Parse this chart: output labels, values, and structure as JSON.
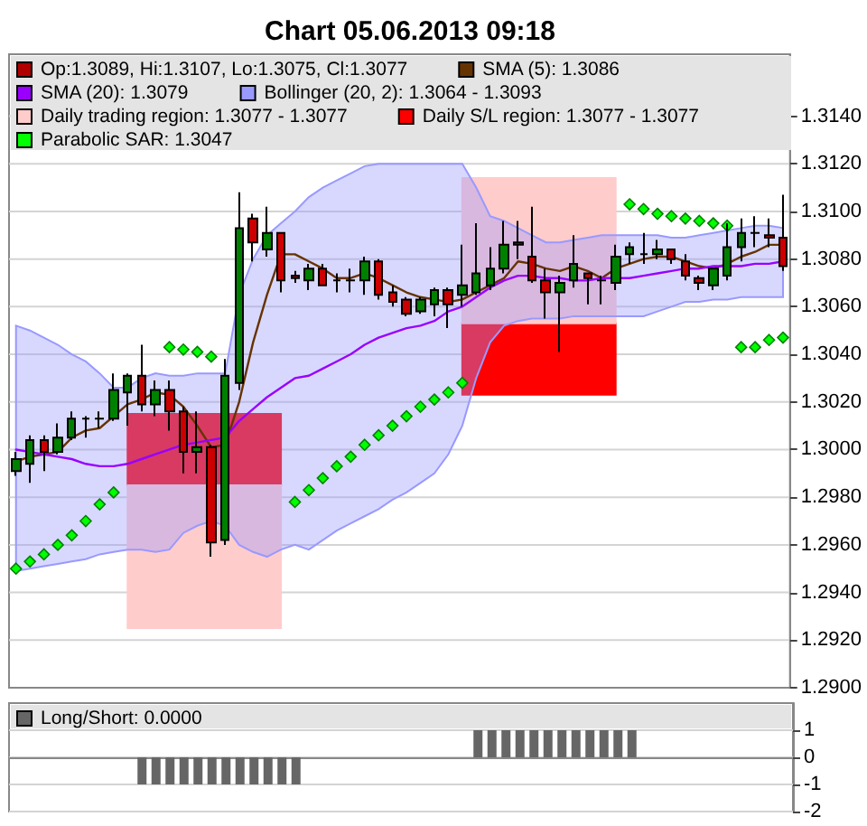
{
  "chart_data": [
    {
      "type": "candlestick",
      "title": "Chart 05.06.2013 09:18",
      "categories": [
        null,
        null,
        null,
        null,
        null,
        null,
        null,
        null,
        null,
        null,
        null,
        null,
        null,
        null,
        null,
        null,
        null,
        null,
        null,
        null,
        null,
        null,
        null,
        null,
        null,
        null,
        null,
        null,
        null,
        null,
        null,
        null,
        null,
        null,
        null,
        null,
        null,
        null,
        null,
        null,
        null,
        null,
        null,
        null,
        null,
        null,
        null,
        null,
        null,
        null,
        null,
        null,
        null,
        null,
        null,
        null
      ],
      "series": [
        {
          "type": "candlestick",
          "name": "Op:1.3089, Hi:1.3107, Lo:1.3075, Cl:1.3077",
          "color": "#b00000",
          "colors": [
            "#008000",
            "#008000",
            "#cc0000",
            "#008000",
            "#008000",
            "#000000",
            "#000000",
            "#008000",
            "#008000",
            "#cc0000",
            "#008000",
            "#cc0000",
            "#cc0000",
            "#008000",
            "#cc0000",
            "#008000",
            "#008000",
            "#cc0000",
            "#008000",
            "#cc0000",
            "#cc0000",
            "#008000",
            "#cc0000",
            "#000000",
            "#000000",
            "#008000",
            "#cc0000",
            "#cc0000",
            "#cc0000",
            "#008000",
            "#008000",
            "#cc0000",
            "#008000",
            "#008000",
            "#008000",
            "#008000",
            "#cc0000",
            "#cc0000",
            "#cc0000",
            "#008000",
            "#008000",
            "#cc0000",
            "#000000",
            "#008000",
            "#008000",
            "#000000",
            "#008000",
            "#cc0000",
            "#cc0000",
            "#cc0000",
            "#008000",
            "#008000",
            "#008000",
            "#000000",
            "#cc0000",
            "#cc0000"
          ],
          "ohlc": [
            [
              1.2991,
              1.2999,
              1.2989,
              1.2996
            ],
            [
              1.2994,
              1.3006,
              1.2986,
              1.3004
            ],
            [
              1.3004,
              1.3006,
              1.2991,
              1.2999
            ],
            [
              1.2999,
              1.3011,
              1.2998,
              1.3005
            ],
            [
              1.3005,
              1.3016,
              1.3004,
              1.3013
            ],
            [
              1.3013,
              1.3014,
              1.3005,
              1.3013
            ],
            [
              1.3013,
              1.3016,
              1.3009,
              1.3013
            ],
            [
              1.3013,
              1.3032,
              1.3012,
              1.3025
            ],
            [
              1.3024,
              1.3032,
              1.301,
              1.3031
            ],
            [
              1.3031,
              1.3044,
              1.3016,
              1.3019
            ],
            [
              1.3019,
              1.3029,
              1.3014,
              1.3025
            ],
            [
              1.3025,
              1.3029,
              1.3008,
              1.3016
            ],
            [
              1.3016,
              1.3018,
              1.299,
              1.2999
            ],
            [
              1.2999,
              1.3016,
              1.299,
              1.3001
            ],
            [
              1.3001,
              1.3002,
              1.2955,
              1.2961
            ],
            [
              1.2962,
              1.3038,
              1.296,
              1.3031
            ],
            [
              1.3028,
              1.3108,
              1.3025,
              1.3093
            ],
            [
              1.3097,
              1.3099,
              1.3079,
              1.3087
            ],
            [
              1.3084,
              1.3102,
              1.3081,
              1.3091
            ],
            [
              1.3091,
              1.3091,
              1.3066,
              1.3071
            ],
            [
              1.3073,
              1.3075,
              1.307,
              1.3072
            ],
            [
              1.3071,
              1.3078,
              1.3067,
              1.3076
            ],
            [
              1.3076,
              1.3078,
              1.3069,
              1.3069
            ],
            [
              1.3071,
              1.3074,
              1.3066,
              1.3071
            ],
            [
              1.3071,
              1.3076,
              1.3066,
              1.3071
            ],
            [
              1.3071,
              1.3081,
              1.3065,
              1.3079
            ],
            [
              1.3079,
              1.308,
              1.3063,
              1.3065
            ],
            [
              1.3066,
              1.3069,
              1.306,
              1.3062
            ],
            [
              1.3063,
              1.3064,
              1.3056,
              1.3057
            ],
            [
              1.3058,
              1.3064,
              1.3057,
              1.3063
            ],
            [
              1.3061,
              1.3068,
              1.3056,
              1.3067
            ],
            [
              1.3067,
              1.3068,
              1.3051,
              1.3061
            ],
            [
              1.3065,
              1.3086,
              1.306,
              1.3069
            ],
            [
              1.3066,
              1.3095,
              1.3065,
              1.3074
            ],
            [
              1.3069,
              1.3085,
              1.3067,
              1.3076
            ],
            [
              1.3076,
              1.3096,
              1.3074,
              1.3086
            ],
            [
              1.3087,
              1.3096,
              1.308,
              1.3086
            ],
            [
              1.3081,
              1.3102,
              1.307,
              1.3071
            ],
            [
              1.3071,
              1.3076,
              1.3055,
              1.3066
            ],
            [
              1.3066,
              1.3073,
              1.3041,
              1.307
            ],
            [
              1.3071,
              1.309,
              1.3068,
              1.3078
            ],
            [
              1.3074,
              1.3074,
              1.3061,
              1.3072
            ],
            [
              1.3071,
              1.3073,
              1.3061,
              1.3071
            ],
            [
              1.307,
              1.3086,
              1.3067,
              1.3081
            ],
            [
              1.3082,
              1.3087,
              1.3078,
              1.3085
            ],
            [
              1.3082,
              1.3091,
              1.3078,
              1.3082
            ],
            [
              1.3082,
              1.3088,
              1.308,
              1.3084
            ],
            [
              1.3084,
              1.3084,
              1.3078,
              1.308
            ],
            [
              1.3079,
              1.3082,
              1.3071,
              1.3073
            ],
            [
              1.3072,
              1.3073,
              1.3067,
              1.307
            ],
            [
              1.3069,
              1.3076,
              1.3067,
              1.3076
            ],
            [
              1.3073,
              1.3095,
              1.3071,
              1.3085
            ],
            [
              1.3085,
              1.3097,
              1.3079,
              1.3091
            ],
            [
              1.3091,
              1.3098,
              1.3085,
              1.3091
            ],
            [
              1.309,
              1.3097,
              1.3085,
              1.3089
            ],
            [
              1.3089,
              1.3107,
              1.3075,
              1.3077
            ]
          ]
        },
        {
          "type": "line",
          "name": "SMA (5): 1.3086",
          "color": "#663300",
          "values": [
            1.2995,
            1.2997,
            1.2998,
            1.2999,
            1.3005,
            1.3008,
            1.3009,
            1.3014,
            1.3019,
            1.3021,
            1.3024,
            1.3023,
            1.3018,
            1.301,
            1.3001,
            1.3002,
            1.302,
            1.3045,
            1.3065,
            1.3082,
            1.3082,
            1.3079,
            1.3076,
            1.3072,
            1.3072,
            1.3074,
            1.3072,
            1.3069,
            1.3066,
            1.3064,
            1.3063,
            1.3062,
            1.3063,
            1.3066,
            1.3069,
            1.3072,
            1.3079,
            1.3078,
            1.3076,
            1.3075,
            1.3077,
            1.3075,
            1.3072,
            1.3076,
            1.3078,
            1.308,
            1.3081,
            1.3081,
            1.3079,
            1.3077,
            1.3076,
            1.3078,
            1.3081,
            1.3083,
            1.3086,
            1.3086
          ]
        },
        {
          "type": "line",
          "name": "SMA (20): 1.3079",
          "color": "#9900ff",
          "values": [
            1.3,
            1.2999,
            1.2998,
            1.2997,
            1.2996,
            1.2994,
            1.2993,
            1.2993,
            1.2994,
            1.2996,
            1.2998,
            1.3,
            1.3002,
            1.3003,
            1.3004,
            1.3005,
            1.3012,
            1.3017,
            1.3022,
            1.3026,
            1.303,
            1.3031,
            1.3034,
            1.3037,
            1.304,
            1.3044,
            1.3047,
            1.3049,
            1.3051,
            1.3052,
            1.3054,
            1.3058,
            1.306,
            1.3064,
            1.3068,
            1.3071,
            1.3073,
            1.3073,
            1.3072,
            1.3072,
            1.3071,
            1.3071,
            1.3072,
            1.3072,
            1.3072,
            1.3073,
            1.3074,
            1.3075,
            1.3076,
            1.3076,
            1.3077,
            1.3077,
            1.3077,
            1.3078,
            1.3078,
            1.3079
          ]
        },
        {
          "type": "line",
          "name": "Bollinger (20, 2): 1.3064 - 1.3093",
          "color": "#9999ff",
          "values": [
            null,
            null,
            null,
            null,
            null,
            null,
            null,
            null,
            null,
            null,
            null,
            null,
            null,
            null,
            null,
            null,
            null,
            null,
            null,
            null,
            null,
            null,
            null,
            null,
            null,
            null,
            null,
            null,
            null,
            null,
            null,
            null,
            null,
            null,
            null,
            null,
            null,
            null,
            null,
            null,
            null,
            null,
            null,
            null,
            null,
            null,
            null,
            null,
            null,
            null,
            null,
            null,
            null,
            null,
            null,
            null
          ],
          "upper": [
            1.3052,
            1.305,
            1.3047,
            1.3044,
            1.304,
            1.3037,
            1.3032,
            1.3026,
            1.3026,
            1.303,
            1.3032,
            1.3031,
            1.3031,
            1.3032,
            1.3032,
            1.3032,
            1.3065,
            1.308,
            1.309,
            1.3095,
            1.31,
            1.3106,
            1.311,
            1.3113,
            1.3116,
            1.3119,
            1.312,
            1.312,
            1.312,
            1.312,
            1.312,
            1.312,
            1.312,
            1.311,
            1.3098,
            1.3096,
            1.3093,
            1.309,
            1.3087,
            1.3087,
            1.3088,
            1.3089,
            1.309,
            1.309,
            1.309,
            1.309,
            1.309,
            1.3089,
            1.3089,
            1.309,
            1.3091,
            1.3092,
            1.3093,
            1.3094,
            1.3094,
            1.3093
          ],
          "lower": [
            1.2949,
            1.295,
            1.2951,
            1.2952,
            1.2953,
            1.2954,
            1.2956,
            1.2957,
            1.2958,
            1.2958,
            1.2957,
            1.2958,
            1.2965,
            1.2968,
            1.297,
            1.2968,
            1.296,
            1.2957,
            1.2955,
            1.2958,
            1.296,
            1.2958,
            1.2962,
            1.2966,
            1.2969,
            1.2972,
            1.2975,
            1.2979,
            1.2982,
            1.2986,
            1.299,
            1.2998,
            1.301,
            1.303,
            1.3045,
            1.3052,
            1.3054,
            1.3055,
            1.3055,
            1.3055,
            1.3056,
            1.3056,
            1.3056,
            1.3056,
            1.3056,
            1.3056,
            1.3058,
            1.306,
            1.3062,
            1.3062,
            1.3063,
            1.3063,
            1.3064,
            1.3064,
            1.3064,
            1.3064
          ]
        },
        {
          "type": "line",
          "name": "Daily trading region: 1.3077 - 1.3077",
          "color": "#ffcccc",
          "values": [
            null,
            null,
            null,
            null,
            null,
            null,
            null,
            null,
            null,
            null,
            null,
            null,
            null,
            null,
            null,
            null,
            null,
            null,
            null,
            null,
            null,
            null,
            null,
            null,
            null,
            null,
            null,
            null,
            null,
            null,
            null,
            null,
            null,
            null,
            null,
            null,
            null,
            null,
            null,
            null,
            null,
            null,
            null,
            null,
            null,
            null,
            null,
            null,
            null,
            null,
            null,
            null,
            null,
            null,
            null,
            null
          ],
          "upper": [
            null,
            null,
            null,
            null,
            null,
            null,
            null,
            null,
            1.2985,
            1.2985,
            1.2985,
            1.2985,
            1.2985,
            1.2985,
            1.2985,
            1.2985,
            1.2985,
            1.2985,
            1.2985,
            1.2985,
            null,
            null,
            null,
            null,
            null,
            null,
            null,
            null,
            null,
            null,
            null,
            null,
            1.3114,
            1.3114,
            1.3114,
            1.3114,
            1.3114,
            1.3114,
            1.3114,
            1.3114,
            1.3114,
            1.3114,
            1.3114,
            1.3114,
            null,
            null,
            null,
            null,
            null,
            null,
            null,
            null,
            null,
            null,
            null,
            null
          ],
          "lower": [
            null,
            null,
            null,
            null,
            null,
            null,
            null,
            null,
            1.2925,
            1.2925,
            1.2925,
            1.2925,
            1.2925,
            1.2925,
            1.2925,
            1.2925,
            1.2925,
            1.2925,
            1.2925,
            1.2925,
            null,
            null,
            null,
            null,
            null,
            null,
            null,
            null,
            null,
            null,
            null,
            null,
            1.3053,
            1.3053,
            1.3053,
            1.3053,
            1.3053,
            1.3053,
            1.3053,
            1.3053,
            1.3053,
            1.3053,
            1.3053,
            1.3053,
            null,
            null,
            null,
            null,
            null,
            null,
            null,
            null,
            null,
            null,
            null,
            null
          ]
        },
        {
          "type": "line",
          "name": "Daily S/L region: 1.3077 - 1.3077",
          "color": "#ff0000",
          "values": [
            null,
            null,
            null,
            null,
            null,
            null,
            null,
            null,
            null,
            null,
            null,
            null,
            null,
            null,
            null,
            null,
            null,
            null,
            null,
            null,
            null,
            null,
            null,
            null,
            null,
            null,
            null,
            null,
            null,
            null,
            null,
            null,
            null,
            null,
            null,
            null,
            null,
            null,
            null,
            null,
            null,
            null,
            null,
            null,
            null,
            null,
            null,
            null,
            null,
            null,
            null,
            null,
            null,
            null,
            null,
            null
          ],
          "upper": [
            null,
            null,
            null,
            null,
            null,
            null,
            null,
            null,
            1.3015,
            1.3015,
            1.3015,
            1.3015,
            1.3015,
            1.3015,
            1.3015,
            1.3015,
            1.3015,
            1.3015,
            1.3015,
            1.3015,
            null,
            null,
            null,
            null,
            null,
            null,
            null,
            null,
            null,
            null,
            null,
            null,
            1.3053,
            1.3053,
            1.3053,
            1.3053,
            1.3053,
            1.3053,
            1.3053,
            1.3053,
            1.3053,
            1.3053,
            1.3053,
            1.3053,
            null,
            null,
            null,
            null,
            null,
            null,
            null,
            null,
            null,
            null,
            null,
            null
          ],
          "lower": [
            null,
            null,
            null,
            null,
            null,
            null,
            null,
            null,
            1.2985,
            1.2985,
            1.2985,
            1.2985,
            1.2985,
            1.2985,
            1.2985,
            1.2985,
            1.2985,
            1.2985,
            1.2985,
            1.2985,
            null,
            null,
            null,
            null,
            null,
            null,
            null,
            null,
            null,
            null,
            null,
            null,
            1.3023,
            1.3023,
            1.3023,
            1.3023,
            1.3023,
            1.3023,
            1.3023,
            1.3023,
            1.3023,
            1.3023,
            1.3023,
            1.3023,
            null,
            null,
            null,
            null,
            null,
            null,
            null,
            null,
            null,
            null,
            null,
            null
          ]
        },
        {
          "type": "scatter",
          "name": "Parabolic SAR: 1.3047",
          "color": "#00ff00",
          "marker": "diamond",
          "values": [
            1.295,
            1.2953,
            1.2956,
            1.296,
            1.2964,
            1.297,
            1.2977,
            1.2982,
            null,
            null,
            null,
            1.3043,
            1.3042,
            1.3041,
            1.3039,
            null,
            null,
            null,
            null,
            null,
            1.2978,
            1.2983,
            1.2988,
            1.2993,
            1.2997,
            1.3002,
            1.3006,
            1.301,
            1.3014,
            1.3018,
            1.3021,
            1.3024,
            1.3028,
            null,
            null,
            null,
            null,
            null,
            null,
            null,
            null,
            null,
            null,
            null,
            1.3103,
            1.3101,
            1.3099,
            1.3098,
            1.3097,
            1.3096,
            1.3095,
            1.3094,
            1.3043,
            1.3043,
            1.3046,
            1.3047
          ]
        }
      ],
      "ylim": [
        1.29,
        1.3166
      ],
      "yticks": [
        {
          "value": 1.29,
          "label": "1.2900"
        },
        {
          "value": 1.292,
          "label": "1.2920"
        },
        {
          "value": 1.294,
          "label": "1.2940"
        },
        {
          "value": 1.296,
          "label": "1.2960"
        },
        {
          "value": 1.298,
          "label": "1.2980"
        },
        {
          "value": 1.3,
          "label": "1.3000"
        },
        {
          "value": 1.302,
          "label": "1.3020"
        },
        {
          "value": 1.304,
          "label": "1.3040"
        },
        {
          "value": 1.306,
          "label": "1.3060"
        },
        {
          "value": 1.308,
          "label": "1.3080"
        },
        {
          "value": 1.31,
          "label": "1.3100"
        },
        {
          "value": 1.312,
          "label": "1.3120"
        },
        {
          "value": 1.314,
          "label": "1.3140"
        }
      ],
      "grid": "y",
      "legend": "top",
      "tick_labels": "y"
    },
    {
      "type": "bar",
      "categories": [
        null,
        null,
        null,
        null,
        null,
        null,
        null,
        null,
        null,
        null,
        null,
        null,
        null,
        null,
        null,
        null,
        null,
        null,
        null,
        null,
        null,
        null,
        null,
        null,
        null,
        null,
        null,
        null,
        null,
        null,
        null,
        null,
        null,
        null,
        null,
        null,
        null,
        null,
        null,
        null,
        null,
        null,
        null,
        null,
        null,
        null,
        null,
        null,
        null,
        null,
        null,
        null,
        null,
        null,
        null,
        null
      ],
      "series": [
        {
          "name": "Long/Short: 0.0000",
          "color": "#666666",
          "values": [
            0,
            0,
            0,
            0,
            0,
            0,
            0,
            0,
            0,
            -1,
            -1,
            -1,
            -1,
            -1,
            -1,
            -1,
            -1,
            -1,
            -1,
            -1,
            -1,
            0,
            0,
            0,
            0,
            0,
            0,
            0,
            0,
            0,
            0,
            0,
            0,
            1,
            1,
            1,
            1,
            1,
            1,
            1,
            1,
            1,
            1,
            1,
            1,
            0,
            0,
            0,
            0,
            0,
            0,
            0,
            0,
            0,
            0,
            0
          ]
        }
      ],
      "ylim": [
        -2,
        2
      ],
      "yticks": [
        -2,
        -1,
        0,
        1
      ],
      "grid": "y",
      "legend": "top",
      "tick_labels": "y"
    }
  ]
}
